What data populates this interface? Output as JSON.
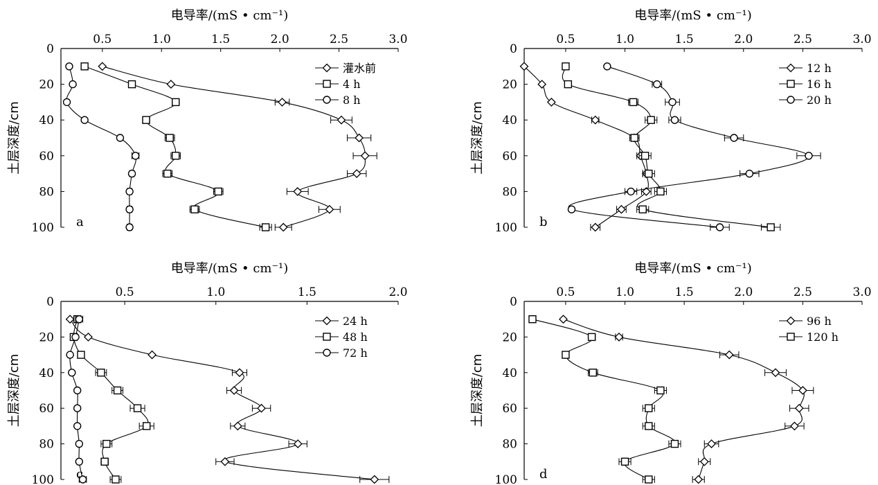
{
  "chart_data": [
    {
      "type": "line",
      "panel_label": "a",
      "xlabel": "电导率/(mS • cm⁻¹)",
      "ylabel": "土层深度/cm",
      "xlim": [
        0.15,
        3.0
      ],
      "ylim": [
        0,
        100
      ],
      "xticks": [
        "0.5",
        "1.0",
        "1.5",
        "2.0",
        "2.5",
        "3.0"
      ],
      "yticks": [
        "0",
        "20",
        "40",
        "60",
        "80",
        "100"
      ],
      "legend_position": "top-right",
      "depths": [
        10,
        20,
        30,
        40,
        50,
        60,
        70,
        80,
        90,
        100
      ],
      "series": [
        {
          "name": "灌水前",
          "marker": "diamond",
          "values": [
            0.5,
            1.08,
            2.02,
            2.52,
            2.67,
            2.72,
            2.65,
            2.15,
            2.42,
            2.03
          ],
          "err": [
            0,
            0,
            0.06,
            0.09,
            0.1,
            0.1,
            0.08,
            0.09,
            0.09,
            0.07
          ]
        },
        {
          "name": "4 h",
          "marker": "square",
          "values": [
            0.35,
            0.75,
            1.12,
            0.87,
            1.07,
            1.12,
            1.05,
            1.48,
            1.28,
            1.88
          ],
          "err": [
            0,
            0.02,
            0.03,
            0.03,
            0.04,
            0.04,
            0.04,
            0.04,
            0.04,
            0.05
          ]
        },
        {
          "name": "8 h",
          "marker": "circle",
          "values": [
            0.22,
            0.25,
            0.2,
            0.35,
            0.65,
            0.78,
            0.75,
            0.73,
            0.73,
            0.73
          ],
          "err": [
            0,
            0,
            0,
            0,
            0,
            0.03,
            0.02,
            0.02,
            0.02,
            0.02
          ]
        }
      ]
    },
    {
      "type": "line",
      "panel_label": "b",
      "xlabel": "电导率/(mS • cm⁻¹)",
      "ylabel": "土层深度/cm",
      "xlim": [
        0.15,
        3.0
      ],
      "ylim": [
        0,
        100
      ],
      "xticks": [
        "0.5",
        "1.0",
        "1.5",
        "2.0",
        "2.5",
        "3.0"
      ],
      "yticks": [
        "0",
        "20",
        "40",
        "60",
        "80",
        "100"
      ],
      "legend_position": "top-right",
      "depths": [
        10,
        20,
        30,
        40,
        50,
        60,
        70,
        80,
        90,
        100
      ],
      "series": [
        {
          "name": "12 h",
          "marker": "diamond",
          "values": [
            0.15,
            0.3,
            0.38,
            0.75,
            1.08,
            1.13,
            1.18,
            1.18,
            0.97,
            0.75
          ],
          "err": [
            0,
            0,
            0,
            0.03,
            0.03,
            0.03,
            0.03,
            0.04,
            0.04,
            0.04
          ]
        },
        {
          "name": "16 h",
          "marker": "square",
          "values": [
            0.5,
            0.52,
            1.07,
            1.22,
            1.08,
            1.17,
            1.2,
            1.3,
            1.15,
            2.23
          ],
          "err": [
            0,
            0,
            0.04,
            0.05,
            0.04,
            0.05,
            0.05,
            0.05,
            0.05,
            0.08
          ]
        },
        {
          "name": "20 h",
          "marker": "circle",
          "values": [
            0.85,
            1.27,
            1.4,
            1.42,
            1.92,
            2.55,
            2.05,
            1.05,
            0.55,
            1.8
          ],
          "err": [
            0,
            0.04,
            0.06,
            0.05,
            0.08,
            0.1,
            0.08,
            0.05,
            0,
            0.08
          ]
        }
      ]
    },
    {
      "type": "line",
      "panel_label": "c",
      "xlabel": "电导率/(mS • cm⁻¹)",
      "ylabel": "土层深度/cm",
      "xlim": [
        0.15,
        2.0
      ],
      "ylim": [
        0,
        100
      ],
      "xticks": [
        "0.5",
        "1.0",
        "1.5",
        "2.0"
      ],
      "yticks": [
        "0",
        "20",
        "40",
        "60",
        "80",
        "100"
      ],
      "legend_position": "top-right",
      "depths": [
        10,
        20,
        30,
        40,
        50,
        60,
        70,
        80,
        90,
        100
      ],
      "series": [
        {
          "name": "24 h",
          "marker": "diamond",
          "values": [
            0.2,
            0.3,
            0.65,
            1.13,
            1.1,
            1.25,
            1.12,
            1.45,
            1.05,
            1.87
          ],
          "err": [
            0,
            0,
            0,
            0.04,
            0.04,
            0.05,
            0.04,
            0.05,
            0.05,
            0.08
          ]
        },
        {
          "name": "48 h",
          "marker": "square",
          "values": [
            0.24,
            0.22,
            0.26,
            0.37,
            0.46,
            0.57,
            0.62,
            0.4,
            0.39,
            0.45
          ],
          "err": [
            0.02,
            0,
            0,
            0.03,
            0.03,
            0.04,
            0.04,
            0.03,
            0.02,
            0.03
          ]
        },
        {
          "name": "72 h",
          "marker": "circle",
          "values": [
            0.25,
            0.23,
            0.2,
            0.21,
            0.24,
            0.24,
            0.24,
            0.25,
            0.25,
            0.27
          ],
          "err": [
            0.02,
            0,
            0,
            0,
            0,
            0,
            0,
            0.01,
            0.01,
            0.02
          ]
        }
      ]
    },
    {
      "type": "line",
      "panel_label": "d",
      "xlabel": "电导率/(mS • cm⁻¹)",
      "ylabel": "土层深度/cm",
      "xlim": [
        0.15,
        3.0
      ],
      "ylim": [
        0,
        100
      ],
      "xticks": [
        "0.5",
        "1.0",
        "1.5",
        "2.0",
        "2.5",
        "3.0"
      ],
      "yticks": [
        "0",
        "20",
        "40",
        "60",
        "80",
        "100"
      ],
      "legend_position": "top-right",
      "depths": [
        10,
        20,
        30,
        40,
        50,
        60,
        70,
        80,
        90,
        100
      ],
      "series": [
        {
          "name": "96 h",
          "marker": "diamond",
          "values": [
            0.48,
            0.95,
            1.88,
            2.27,
            2.5,
            2.47,
            2.43,
            1.73,
            1.67,
            1.62
          ],
          "err": [
            0,
            0.03,
            0.08,
            0.09,
            0.09,
            0.08,
            0.08,
            0.06,
            0.05,
            0.05
          ]
        },
        {
          "name": "120 h",
          "marker": "square",
          "values": [
            0.22,
            0.72,
            0.5,
            0.73,
            1.3,
            1.2,
            1.2,
            1.42,
            1.0,
            1.2
          ],
          "err": [
            0,
            0.03,
            0,
            0.04,
            0.05,
            0.05,
            0.05,
            0.05,
            0.05,
            0.05
          ]
        }
      ]
    }
  ]
}
